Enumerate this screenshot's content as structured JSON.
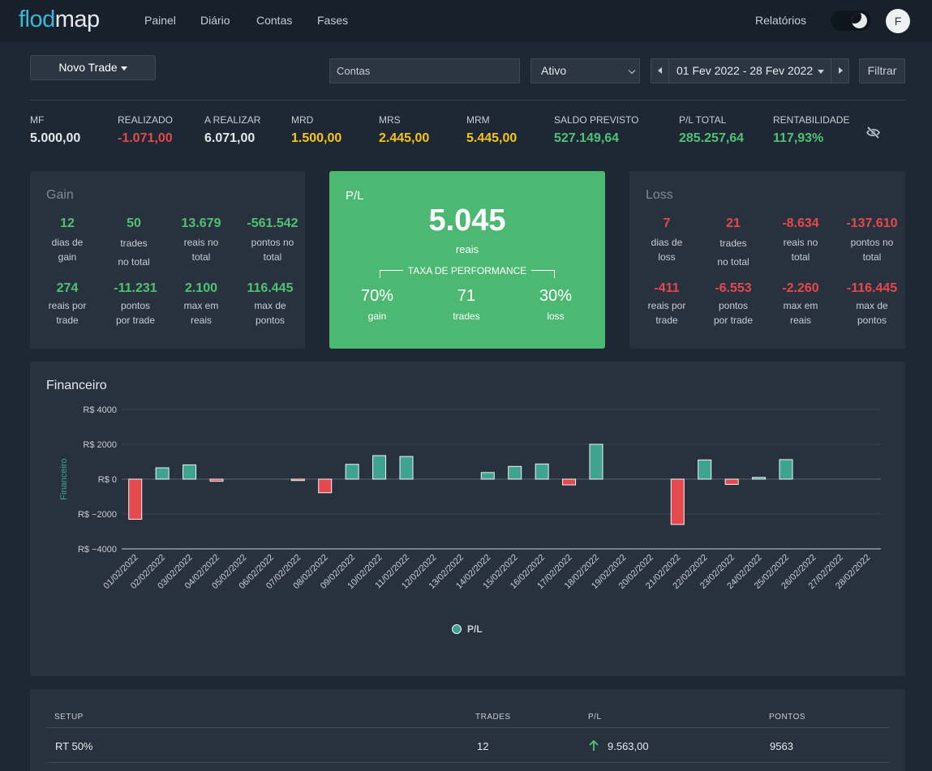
{
  "app": {
    "logo_part1": "flod",
    "logo_part2": "map",
    "nav": [
      "Painel",
      "Diário",
      "Contas",
      "Fases"
    ],
    "reports": "Relatórios",
    "avatar_letter": "F"
  },
  "toolbar": {
    "new_trade": "Novo Trade",
    "accounts_value": "Contas",
    "status_value": "Ativo",
    "date_range": "01 Fev 2022 - 28 Fev 2022",
    "filter": "Filtrar"
  },
  "stats": [
    {
      "label": "MF",
      "value": "5.000,00",
      "color": "#e6e9ec"
    },
    {
      "label": "REALIZADO",
      "value": "-1.071,00",
      "color": "#e5484d"
    },
    {
      "label": "A REALIZAR",
      "value": "6.071,00",
      "color": "#e6e9ec"
    },
    {
      "label": "MRD",
      "value": "1.500,00",
      "color": "#f5c518"
    },
    {
      "label": "MRS",
      "value": "2.445,00",
      "color": "#f5c518"
    },
    {
      "label": "MRM",
      "value": "5.445,00",
      "color": "#f5c518"
    },
    {
      "label": "SALDO PREVISTO",
      "value": "527.149,64",
      "color": "#51c174"
    },
    {
      "label": "P/L TOTAL",
      "value": "285.257,64",
      "color": "#51c174"
    },
    {
      "label": "RENTABILIDADE",
      "value": "117,93%",
      "color": "#51c174"
    }
  ],
  "gain": {
    "title": "Gain",
    "row1": [
      {
        "value": "12",
        "text1": "dias de",
        "text2": "gain"
      },
      {
        "value": "50",
        "text1": "trades",
        "text2": "no total"
      },
      {
        "value": "13.679",
        "text1": "reais no",
        "text2": "total"
      },
      {
        "value": "-561.542",
        "text1": "pontos no",
        "text2": "total"
      }
    ],
    "row2": [
      {
        "value": "274",
        "text1": "reais por",
        "text2": "trade"
      },
      {
        "value": "-11.231",
        "text1": "pontos",
        "text2": "por trade"
      },
      {
        "value": "2.100",
        "text1": "max em",
        "text2": "reais"
      },
      {
        "value": "116.445",
        "text1": "max de",
        "text2": "pontos"
      }
    ]
  },
  "pl": {
    "title": "P/L",
    "value": "5.045",
    "unit": "reais",
    "perf_label": "TAXA DE PERFORMANCE",
    "cols": [
      {
        "value": "70%",
        "label": "gain"
      },
      {
        "value": "71",
        "label": "trades"
      },
      {
        "value": "30%",
        "label": "loss"
      }
    ]
  },
  "loss": {
    "title": "Loss",
    "row1": [
      {
        "value": "7",
        "text1": "dias de",
        "text2": "loss"
      },
      {
        "value": "21",
        "text1": "trades",
        "text2": "no total"
      },
      {
        "value": "-8.634",
        "text1": "reais no",
        "text2": "total"
      },
      {
        "value": "-137.610",
        "text1": "pontos no",
        "text2": "total"
      }
    ],
    "row2": [
      {
        "value": "-411",
        "text1": "reais por",
        "text2": "trade"
      },
      {
        "value": "-6.553",
        "text1": "pontos",
        "text2": "por trade"
      },
      {
        "value": "-2.260",
        "text1": "max em",
        "text2": "reais"
      },
      {
        "value": "-116.445",
        "text1": "max de",
        "text2": "pontos"
      }
    ]
  },
  "financeiro": {
    "title": "Financeiro"
  },
  "chart_data": {
    "type": "bar",
    "title": "",
    "ylabel": "Financeiro",
    "legend": "P/L",
    "legend_position": "bottom-center",
    "ylim": [
      -4000,
      4000
    ],
    "yticks": [
      4000,
      2000,
      0,
      -2000,
      -4000
    ],
    "ytick_labels": [
      "R$ 4000",
      "R$ 2000",
      "R$ 0",
      "R$ −2000",
      "R$ −4000"
    ],
    "grid": true,
    "positive_color": "#3ea38f",
    "negative_color": "#e5484d",
    "categories": [
      "01/02/2022",
      "02/02/2022",
      "03/02/2022",
      "04/02/2022",
      "05/02/2022",
      "06/02/2022",
      "07/02/2022",
      "08/02/2022",
      "09/02/2022",
      "10/02/2022",
      "11/02/2022",
      "12/02/2022",
      "13/02/2022",
      "14/02/2022",
      "15/02/2022",
      "16/02/2022",
      "17/02/2022",
      "18/02/2022",
      "19/02/2022",
      "20/02/2022",
      "21/02/2022",
      "22/02/2022",
      "23/02/2022",
      "24/02/2022",
      "25/02/2022",
      "26/02/2022",
      "27/02/2022",
      "28/02/2022"
    ],
    "series": [
      {
        "name": "P/L",
        "values": [
          -2300,
          650,
          820,
          -120,
          0,
          0,
          -80,
          -780,
          850,
          1350,
          1300,
          0,
          0,
          380,
          730,
          870,
          -330,
          2000,
          0,
          0,
          -2600,
          1100,
          -300,
          100,
          1120,
          0,
          0,
          0
        ]
      }
    ]
  },
  "table": {
    "headers": [
      "SETUP",
      "TRADES",
      "P/L",
      "PONTOS"
    ],
    "rows": [
      {
        "setup": "RT 50%",
        "trades": "12",
        "pl": "9.563,00",
        "pontos": "9563"
      }
    ]
  }
}
